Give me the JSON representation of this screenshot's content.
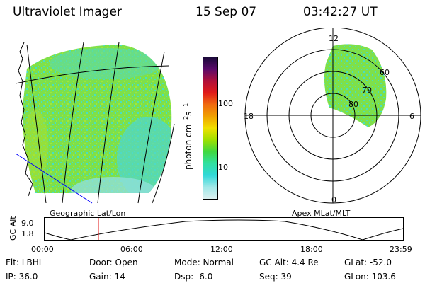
{
  "header": {
    "title": "Ultraviolet Imager",
    "date": "15 Sep 07",
    "time": "03:42:27 UT"
  },
  "image_panel": {
    "caption": "Geographic Lat/Lon"
  },
  "colorbar": {
    "unit_label": "photon cm",
    "unit_sup1": "−2",
    "unit_mid": "s",
    "unit_sup2": "−1",
    "ticks": [
      "100",
      "10"
    ],
    "colors": [
      "#1a0a3a",
      "#5a0a6a",
      "#b0103a",
      "#e01a1a",
      "#f06a10",
      "#f0a000",
      "#f0e000",
      "#a0e000",
      "#40d840",
      "#30e0a0",
      "#30d8d8",
      "#a0e8e8",
      "#dcf0f0"
    ]
  },
  "polar_panel": {
    "caption": "Apex MLat/MLT",
    "mlt_labels": [
      "12",
      "18",
      "6",
      "0"
    ],
    "lat_labels": [
      "60",
      "70",
      "80"
    ]
  },
  "altitude_plot": {
    "ylabel": "GC Alt",
    "yticks": [
      "9.0",
      "1.8"
    ],
    "xticks": [
      "00:00",
      "06:00",
      "12:00",
      "18:00",
      "23:59"
    ]
  },
  "info": {
    "filter": "Flt: LBHL",
    "door": "Door: Open",
    "mode": "Mode: Normal",
    "gc_alt": "GC Alt: 4.4 Re",
    "glat": "GLat: -52.0",
    "ip": "IP: 36.0",
    "gain": "Gain: 14",
    "dsp": "Dsp:    -6.0",
    "seq": "Seq: 39",
    "glon": "GLon: 103.6"
  },
  "palette": {
    "auroral_green": "#7ee04a",
    "auroral_cyan": "#48e0c0",
    "grid_line": "#000000",
    "coastline": "#0000ff",
    "time_marker": "#e01010"
  }
}
